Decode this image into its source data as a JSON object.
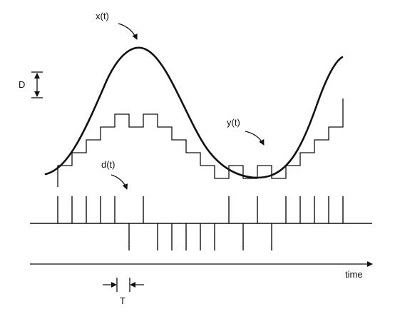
{
  "labels": {
    "x_signal": "x(t)",
    "y_signal": "y(t)",
    "d_signal": "d(t)",
    "step_size": "D",
    "period": "T",
    "time_axis": "time"
  },
  "signals": {
    "sample_count": 21,
    "pulse_pattern": [
      1,
      1,
      1,
      1,
      1,
      0,
      1,
      0,
      0,
      0,
      0,
      0,
      1,
      0,
      1,
      0,
      1,
      1,
      1,
      1,
      1
    ],
    "pulse_polarity_note": "1 = upward pulse, 0 = downward pulse"
  },
  "colors": {
    "ink": "#111111",
    "background": "#ffffff"
  }
}
